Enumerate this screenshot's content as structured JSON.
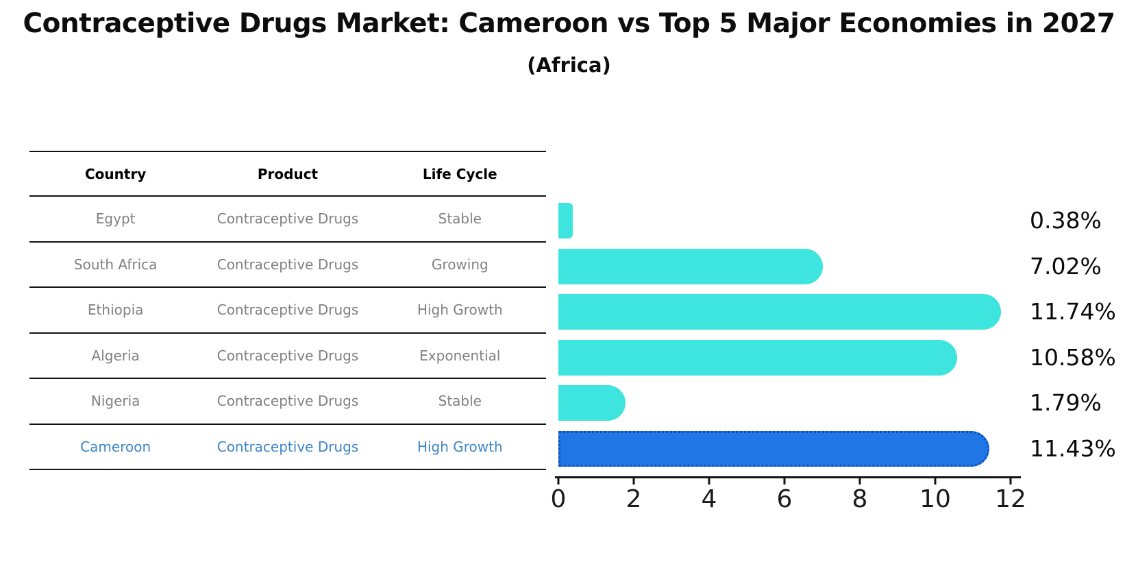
{
  "title": "Contraceptive Drugs Market: Cameroon vs Top 5 Major Economies in 2027",
  "subtitle": "(Africa)",
  "table": {
    "headers": [
      "Country",
      "Product",
      "Life Cycle"
    ],
    "rows": [
      {
        "country": "Egypt",
        "product": "Contraceptive Drugs",
        "life_cycle": "Stable",
        "highlight": false
      },
      {
        "country": "South Africa",
        "product": "Contraceptive Drugs",
        "life_cycle": "Growing",
        "highlight": false
      },
      {
        "country": "Ethiopia",
        "product": "Contraceptive Drugs",
        "life_cycle": "High Growth",
        "highlight": false
      },
      {
        "country": "Algeria",
        "product": "Contraceptive Drugs",
        "life_cycle": "Exponential",
        "highlight": false
      },
      {
        "country": "Nigeria",
        "product": "Contraceptive Drugs",
        "life_cycle": "Stable",
        "highlight": false
      },
      {
        "country": "Cameroon",
        "product": "Contraceptive Drugs",
        "life_cycle": "High Growth",
        "highlight": true
      }
    ]
  },
  "chart_data": {
    "type": "bar",
    "orientation": "horizontal",
    "title": "Contraceptive Drugs Market: Cameroon vs Top 5 Major Economies in 2027",
    "subtitle": "(Africa)",
    "categories": [
      "Egypt",
      "South Africa",
      "Ethiopia",
      "Algeria",
      "Nigeria",
      "Cameroon"
    ],
    "values": [
      0.38,
      7.02,
      11.74,
      10.58,
      1.79,
      11.43
    ],
    "value_labels": [
      "0.38%",
      "7.02%",
      "11.74%",
      "10.58%",
      "1.79%",
      "11.43%"
    ],
    "xlim": [
      0,
      12
    ],
    "x_ticks": [
      0,
      2,
      4,
      6,
      8,
      10,
      12
    ],
    "grid": false,
    "legend": false,
    "bar_color": "#3ee4de",
    "highlight_color": "#2176e6",
    "highlight_index": 5,
    "text_gray": "#808080",
    "highlight_text_color": "#3c86c8"
  }
}
